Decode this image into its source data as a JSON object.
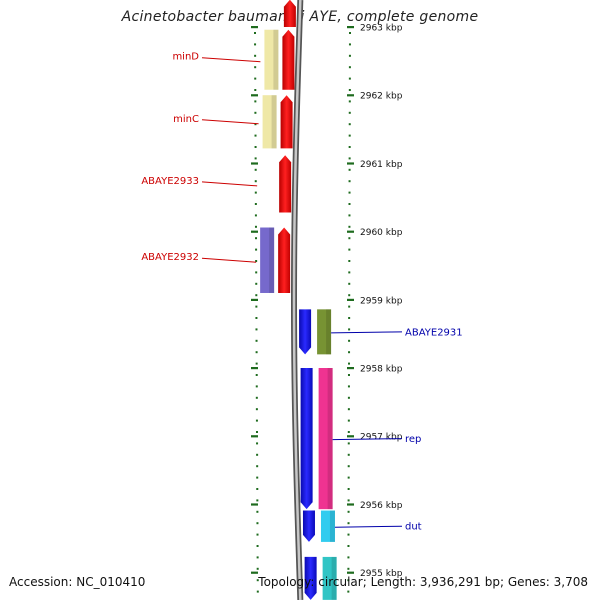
{
  "title": "Acinetobacter baumannii AYE, complete genome",
  "accession": {
    "label": "Accession:",
    "value": "NC_010410"
  },
  "summary": {
    "topology_label": "Topology:",
    "topology": "circular",
    "length_label": "Length:",
    "length": "3,936,291 bp",
    "genes_label": "Genes:",
    "genes": "3,708"
  },
  "ticks": [
    {
      "kbp": 2963,
      "label": "2963 kbp"
    },
    {
      "kbp": 2962,
      "label": "2962 kbp"
    },
    {
      "kbp": 2961,
      "label": "2961 kbp"
    },
    {
      "kbp": 2960,
      "label": "2960 kbp"
    },
    {
      "kbp": 2959,
      "label": "2959 kbp"
    },
    {
      "kbp": 2958,
      "label": "2958 kbp"
    },
    {
      "kbp": 2957,
      "label": "2957 kbp"
    },
    {
      "kbp": 2956,
      "label": "2956 kbp"
    },
    {
      "kbp": 2955,
      "label": "2955 kbp"
    }
  ],
  "colors": {
    "reverse_gene": "#ee1111",
    "forward_gene": "#1a1aee",
    "reverse_label": "#cc0000",
    "forward_label": "#0000aa",
    "backbone": "#8c8c8c",
    "tick": "#1e6b1e",
    "cog_yellow": "#eee6a0",
    "cog_purple": "#6a5cc8",
    "cog_olive": "#6b8a22",
    "cog_pink": "#ee2288",
    "cog_cyan": "#20c8ee",
    "cog_teal": "#20c0c0"
  },
  "genes": [
    {
      "name": "",
      "strand": "reverse",
      "start_kbp": 2963.4,
      "end_kbp": 2963.0,
      "cog_color": ""
    },
    {
      "name": "minD",
      "strand": "reverse",
      "start_kbp": 2962.96,
      "end_kbp": 2962.08,
      "cog_color": "#eee6a0"
    },
    {
      "name": "minC",
      "strand": "reverse",
      "start_kbp": 2962.0,
      "end_kbp": 2961.22,
      "cog_color": "#eee6a0"
    },
    {
      "name": "ABAYE2933",
      "strand": "reverse",
      "start_kbp": 2961.12,
      "end_kbp": 2960.28,
      "cog_color": ""
    },
    {
      "name": "ABAYE2932",
      "strand": "reverse",
      "start_kbp": 2960.06,
      "end_kbp": 2959.1,
      "cog_color": "#6a5cc8"
    },
    {
      "name": "ABAYE2931",
      "strand": "forward",
      "start_kbp": 2958.86,
      "end_kbp": 2958.2,
      "cog_color": "#6b8a22"
    },
    {
      "name": "rep",
      "strand": "forward",
      "start_kbp": 2958.0,
      "end_kbp": 2955.93,
      "cog_color": "#ee2288"
    },
    {
      "name": "dut",
      "strand": "forward",
      "start_kbp": 2955.91,
      "end_kbp": 2955.45,
      "cog_color": "#20c8ee"
    },
    {
      "name": "",
      "strand": "forward",
      "start_kbp": 2955.23,
      "end_kbp": 2954.6,
      "cog_color": "#20c0c0"
    }
  ]
}
